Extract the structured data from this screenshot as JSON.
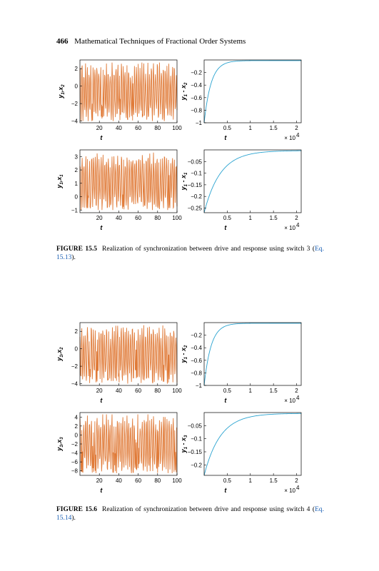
{
  "header": {
    "page_number": "466",
    "running_title": "Mathematical Techniques of Fractional Order Systems"
  },
  "figures": [
    {
      "label": "FIGURE 15.5",
      "caption_text": "Realization of synchronization between drive and response using switch 3 (",
      "caption_ref": "Eq. 15.13",
      "caption_end": ")."
    },
    {
      "label": "FIGURE 15.6",
      "caption_text": "Realization of synchronization between drive and response using switch 4 (",
      "caption_ref": "Eq. 15.14",
      "caption_end": ")."
    }
  ],
  "chart_data": [
    {
      "type": "line",
      "panel": "fig15.5-a",
      "ylabel_main": "y",
      "ylabel_sub1": "1",
      "ylabel_mid": ",x",
      "ylabel_sub2": "2",
      "xlabel": "t",
      "xticks": [
        20,
        40,
        60,
        80,
        100
      ],
      "yticks": [
        -4,
        -2,
        0,
        2
      ],
      "xlim": [
        0,
        100
      ],
      "ylim": [
        -4.2,
        3
      ],
      "color": "#e07b39",
      "series": [
        {
          "kind": "chaotic-oscillation",
          "min": -4,
          "max": 2.7,
          "seed": 3
        }
      ]
    },
    {
      "type": "line",
      "panel": "fig15.5-b",
      "ylabel_main": "y",
      "ylabel_sub1": "1",
      "ylabel_mid": " - x",
      "ylabel_sub2": "2",
      "xlabel": "t",
      "xmultiplier": "× 10",
      "xmultiplier_exp": "4",
      "xticks": [
        0.5,
        1,
        1.5,
        2
      ],
      "yticks": [
        -1,
        -0.8,
        -0.6,
        -0.4,
        -0.2
      ],
      "xtick_labels": [
        "0.5",
        "1",
        "1.5",
        "2"
      ],
      "ytick_labels": [
        "−1",
        "−0.8",
        "−0.6",
        "−0.4",
        "−0.2"
      ],
      "xlim": [
        0,
        2.1
      ],
      "ylim": [
        -1,
        0
      ],
      "color": "#2aa3d0",
      "series": [
        {
          "kind": "exp-convergence",
          "start": -1,
          "end": -0.01,
          "rate": 14
        }
      ]
    },
    {
      "type": "line",
      "panel": "fig15.5-c",
      "ylabel_main": "y",
      "ylabel_sub1": "1",
      "ylabel_mid": ",x",
      "ylabel_sub2": "1",
      "xlabel": "t",
      "xticks": [
        20,
        40,
        60,
        80,
        100
      ],
      "yticks": [
        -1,
        0,
        1,
        2,
        3
      ],
      "xlim": [
        0,
        100
      ],
      "ylim": [
        -1.2,
        3.5
      ],
      "color": "#e07b39",
      "series": [
        {
          "kind": "chaotic-oscillation",
          "min": -1,
          "max": 3.3,
          "seed": 7
        }
      ]
    },
    {
      "type": "line",
      "panel": "fig15.5-d",
      "ylabel_main": "y",
      "ylabel_sub1": "1",
      "ylabel_mid": " - x",
      "ylabel_sub2": "1",
      "xlabel": "t",
      "xmultiplier": "× 10",
      "xmultiplier_exp": "4",
      "xticks": [
        0.5,
        1,
        1.5,
        2
      ],
      "yticks": [
        -0.25,
        -0.2,
        -0.15,
        -0.1,
        -0.05
      ],
      "xtick_labels": [
        "0.5",
        "1",
        "1.5",
        "2"
      ],
      "ytick_labels": [
        "−0.25",
        "−0.2",
        "−0.15",
        "−0.1",
        "−0.05"
      ],
      "xlim": [
        0,
        2.1
      ],
      "ylim": [
        -0.27,
        0
      ],
      "color": "#2aa3d0",
      "series": [
        {
          "kind": "exp-convergence",
          "start": -0.27,
          "end": -0.003,
          "rate": 6
        }
      ]
    },
    {
      "type": "line",
      "panel": "fig15.6-a",
      "ylabel_main": "y",
      "ylabel_sub1": "1",
      "ylabel_mid": ",x",
      "ylabel_sub2": "2",
      "xlabel": "t",
      "xticks": [
        20,
        40,
        60,
        80,
        100
      ],
      "yticks": [
        -4,
        -2,
        0,
        2
      ],
      "xlim": [
        0,
        100
      ],
      "ylim": [
        -4.2,
        3
      ],
      "color": "#e07b39",
      "series": [
        {
          "kind": "chaotic-oscillation",
          "min": -4,
          "max": 2.7,
          "seed": 11
        }
      ]
    },
    {
      "type": "line",
      "panel": "fig15.6-b",
      "ylabel_main": "y",
      "ylabel_sub1": "1",
      "ylabel_mid": " - x",
      "ylabel_sub2": "2",
      "xlabel": "t",
      "xmultiplier": "× 10",
      "xmultiplier_exp": "4",
      "xticks": [
        0.5,
        1,
        1.5,
        2
      ],
      "yticks": [
        -1,
        -0.8,
        -0.6,
        -0.4,
        -0.2
      ],
      "xtick_labels": [
        "0.5",
        "1",
        "1.5",
        "2"
      ],
      "ytick_labels": [
        "−1",
        "−0.8",
        "−0.6",
        "−0.4",
        "−0.2"
      ],
      "xlim": [
        0,
        2.1
      ],
      "ylim": [
        -1,
        0
      ],
      "color": "#2aa3d0",
      "series": [
        {
          "kind": "exp-convergence",
          "start": -1,
          "end": -0.01,
          "rate": 14
        }
      ]
    },
    {
      "type": "line",
      "panel": "fig15.6-c",
      "ylabel_main": "y",
      "ylabel_sub1": "1",
      "ylabel_mid": ",x",
      "ylabel_sub2": "3",
      "xlabel": "t",
      "xticks": [
        20,
        40,
        60,
        80,
        100
      ],
      "yticks": [
        -8,
        -6,
        -4,
        -2,
        0,
        2,
        4
      ],
      "xlim": [
        0,
        100
      ],
      "ylim": [
        -9,
        5
      ],
      "color": "#e07b39",
      "series": [
        {
          "kind": "chaotic-oscillation",
          "min": -8.5,
          "max": 4.6,
          "seed": 19
        }
      ]
    },
    {
      "type": "line",
      "panel": "fig15.6-d",
      "ylabel_main": "y",
      "ylabel_sub1": "1",
      "ylabel_mid": " - x",
      "ylabel_sub2": "3",
      "xlabel": "t",
      "xmultiplier": "× 10",
      "xmultiplier_exp": "4",
      "xticks": [
        0.5,
        1,
        1.5,
        2
      ],
      "yticks": [
        -0.2,
        -0.15,
        -0.1,
        -0.05
      ],
      "xtick_labels": [
        "0.5",
        "1",
        "1.5",
        "2"
      ],
      "ytick_labels": [
        "−0.2",
        "−0.15",
        "−0.1",
        "−0.05"
      ],
      "xlim": [
        0,
        2.1
      ],
      "ylim": [
        -0.24,
        0
      ],
      "color": "#2aa3d0",
      "series": [
        {
          "kind": "exp-convergence",
          "start": -0.24,
          "end": -0.003,
          "rate": 6
        }
      ]
    }
  ]
}
